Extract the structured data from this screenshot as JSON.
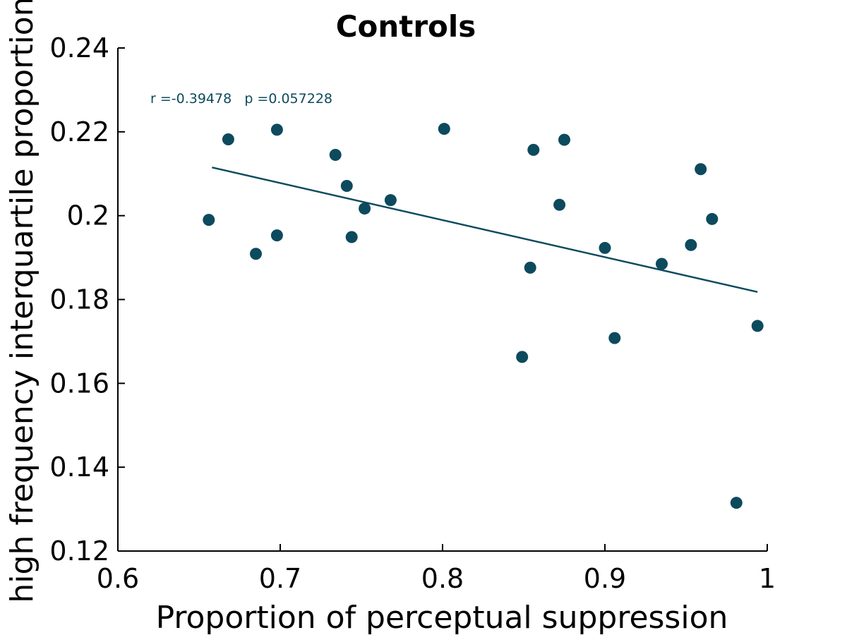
{
  "chart_data": {
    "type": "scatter",
    "title": "Controls",
    "xlabel": "Proportion of perceptual suppression",
    "ylabel": "high frequency interquartile proportion",
    "xlim": [
      0.6,
      1.0
    ],
    "ylim": [
      0.12,
      0.24
    ],
    "xticks": [
      "0.6",
      "0.7",
      "0.8",
      "0.9",
      "1"
    ],
    "yticks": [
      "0.12",
      "0.14",
      "0.16",
      "0.18",
      "0.2",
      "0.22",
      "0.24"
    ],
    "grid": false,
    "annotation": "r =-0.39478   p =0.057228",
    "marker_color": "#0d4a5e",
    "line_color": "#0d4a5e",
    "points": [
      {
        "x": 0.656,
        "y": 0.199
      },
      {
        "x": 0.668,
        "y": 0.2182
      },
      {
        "x": 0.685,
        "y": 0.1909
      },
      {
        "x": 0.698,
        "y": 0.2205
      },
      {
        "x": 0.698,
        "y": 0.1953
      },
      {
        "x": 0.734,
        "y": 0.2145
      },
      {
        "x": 0.741,
        "y": 0.2071
      },
      {
        "x": 0.744,
        "y": 0.1949
      },
      {
        "x": 0.752,
        "y": 0.2017
      },
      {
        "x": 0.768,
        "y": 0.2037
      },
      {
        "x": 0.801,
        "y": 0.2207
      },
      {
        "x": 0.849,
        "y": 0.1663
      },
      {
        "x": 0.854,
        "y": 0.1876
      },
      {
        "x": 0.856,
        "y": 0.2157
      },
      {
        "x": 0.872,
        "y": 0.2026
      },
      {
        "x": 0.875,
        "y": 0.2181
      },
      {
        "x": 0.9,
        "y": 0.1923
      },
      {
        "x": 0.906,
        "y": 0.1708
      },
      {
        "x": 0.935,
        "y": 0.1885
      },
      {
        "x": 0.953,
        "y": 0.193
      },
      {
        "x": 0.959,
        "y": 0.2111
      },
      {
        "x": 0.966,
        "y": 0.1992
      },
      {
        "x": 0.981,
        "y": 0.1315
      },
      {
        "x": 0.994,
        "y": 0.1737
      }
    ],
    "fit_line": {
      "x": [
        0.658,
        0.994
      ],
      "y": [
        0.2115,
        0.1818
      ]
    }
  }
}
